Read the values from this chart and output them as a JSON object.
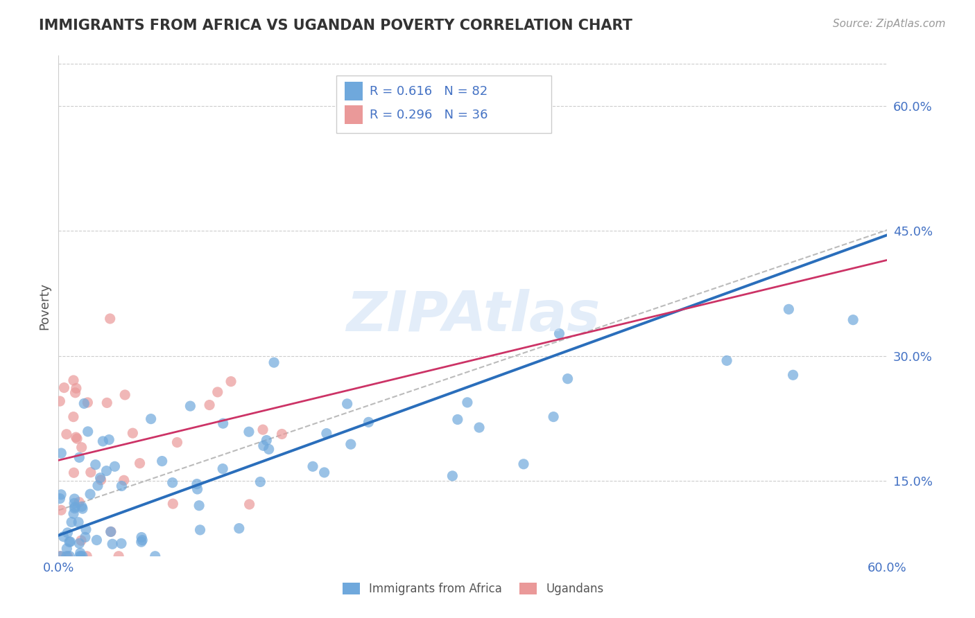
{
  "title": "IMMIGRANTS FROM AFRICA VS UGANDAN POVERTY CORRELATION CHART",
  "source": "Source: ZipAtlas.com",
  "ylabel": "Poverty",
  "xlim": [
    0.0,
    0.6
  ],
  "ylim": [
    0.06,
    0.66
  ],
  "yticks": [
    0.15,
    0.3,
    0.45,
    0.6
  ],
  "ytick_labels": [
    "15.0%",
    "30.0%",
    "45.0%",
    "60.0%"
  ],
  "xtick_labels": [
    "0.0%",
    "60.0%"
  ],
  "series1_color": "#6fa8dc",
  "series2_color": "#ea9999",
  "series1_line_color": "#2a6ebb",
  "series2_line_color": "#cc3366",
  "gray_line_color": "#bbbbbb",
  "R1": 0.616,
  "N1": 82,
  "R2": 0.296,
  "N2": 36,
  "legend_label1": "Immigrants from Africa",
  "legend_label2": "Ugandans",
  "watermark": "ZIPAtlas",
  "background_color": "#ffffff",
  "grid_color": "#cccccc",
  "title_color": "#333333",
  "axis_color": "#4472c4",
  "blue_intercept": 0.085,
  "blue_slope": 0.6,
  "pink_intercept": 0.175,
  "pink_slope": 0.4,
  "gray_intercept": 0.115,
  "gray_slope": 0.56
}
